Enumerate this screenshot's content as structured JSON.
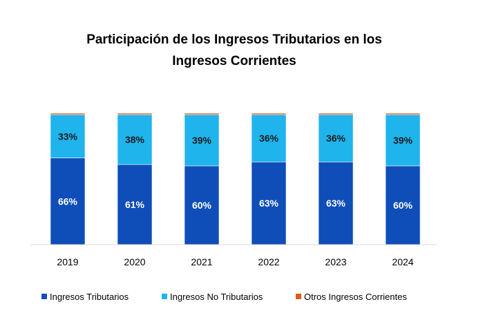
{
  "chart_data": {
    "type": "bar",
    "stacked": true,
    "title": "Participación de los Ingresos Tributarios en los Ingresos Corrientes",
    "title_lines": [
      "Participación de los Ingresos Tributarios en los",
      "Ingresos Corrientes"
    ],
    "categories": [
      "2019",
      "2020",
      "2021",
      "2022",
      "2023",
      "2024"
    ],
    "series": [
      {
        "name": "Ingresos Tributarios",
        "color": "#0F4EB8",
        "label_color": "#FFFFFF",
        "values": [
          66,
          61,
          60,
          63,
          63,
          60
        ],
        "labels": [
          "66%",
          "61%",
          "60%",
          "63%",
          "63%",
          "60%"
        ]
      },
      {
        "name": "Ingresos No Tributarios",
        "color": "#1FB4EC",
        "label_color": "#1A1A1A",
        "values": [
          33,
          38,
          39,
          36,
          36,
          39
        ],
        "labels": [
          "33%",
          "38%",
          "39%",
          "36%",
          "36%",
          "39%"
        ]
      },
      {
        "name": "Otros Ingresos Corrientes",
        "color": "#E05A1E",
        "label_color": null,
        "values": [
          1,
          1,
          1,
          1,
          1,
          1
        ],
        "labels": null
      }
    ],
    "ylim": [
      0,
      100
    ],
    "xlabel": "",
    "ylabel": "",
    "grid": false,
    "legend_position": "bottom"
  }
}
